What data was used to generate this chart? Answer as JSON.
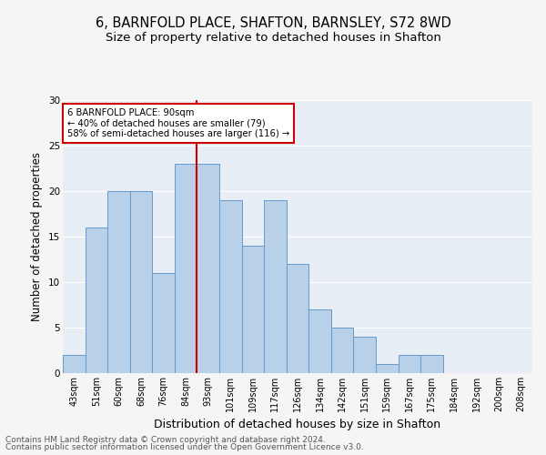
{
  "title1": "6, BARNFOLD PLACE, SHAFTON, BARNSLEY, S72 8WD",
  "title2": "Size of property relative to detached houses in Shafton",
  "xlabel": "Distribution of detached houses by size in Shafton",
  "ylabel": "Number of detached properties",
  "footer1": "Contains HM Land Registry data © Crown copyright and database right 2024.",
  "footer2": "Contains public sector information licensed under the Open Government Licence v3.0.",
  "categories": [
    "43sqm",
    "51sqm",
    "60sqm",
    "68sqm",
    "76sqm",
    "84sqm",
    "93sqm",
    "101sqm",
    "109sqm",
    "117sqm",
    "126sqm",
    "134sqm",
    "142sqm",
    "151sqm",
    "159sqm",
    "167sqm",
    "175sqm",
    "184sqm",
    "192sqm",
    "200sqm",
    "208sqm"
  ],
  "values": [
    2,
    16,
    20,
    20,
    11,
    23,
    23,
    19,
    14,
    19,
    12,
    7,
    5,
    4,
    1,
    2,
    2,
    0,
    0,
    0,
    0
  ],
  "bar_color": "#b8d0e8",
  "bar_edge_color": "#6699cc",
  "bar_edge_width": 0.7,
  "vline_x": 5.5,
  "vline_color": "#cc0000",
  "annotation_line1": "6 BARNFOLD PLACE: 90sqm",
  "annotation_line2": "← 40% of detached houses are smaller (79)",
  "annotation_line3": "58% of semi-detached houses are larger (116) →",
  "annotation_box_color": "#ffffff",
  "annotation_box_edge": "#cc0000",
  "ylim": [
    0,
    30
  ],
  "yticks": [
    0,
    5,
    10,
    15,
    20,
    25,
    30
  ],
  "bg_color": "#e8eef5",
  "grid_color": "#ffffff",
  "title1_fontsize": 10.5,
  "title2_fontsize": 9.5,
  "ylabel_fontsize": 8.5,
  "xlabel_fontsize": 9,
  "tick_fontsize": 7,
  "footer_fontsize": 6.5
}
